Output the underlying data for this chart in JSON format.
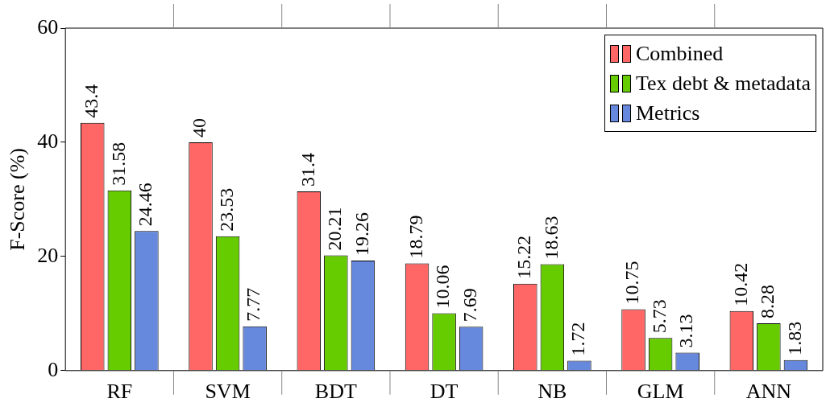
{
  "chart_data": {
    "type": "bar",
    "ylabel": "F-Score (%)",
    "categories": [
      "RF",
      "SVM",
      "BDT",
      "DT",
      "NB",
      "GLM",
      "ANN"
    ],
    "series": [
      {
        "name": "Combined",
        "color": "#ff6666",
        "values": [
          43.4,
          40,
          31.4,
          18.79,
          15.22,
          10.75,
          10.42
        ]
      },
      {
        "name": "Tex debt & metadata",
        "color": "#66cc00",
        "values": [
          31.58,
          23.53,
          20.21,
          10.06,
          18.63,
          5.73,
          8.28
        ]
      },
      {
        "name": "Metrics",
        "color": "#6688dd",
        "values": [
          24.46,
          7.77,
          19.26,
          7.69,
          1.72,
          3.13,
          1.83
        ]
      }
    ],
    "ylim": [
      0,
      60
    ],
    "yticks": [
      0,
      20,
      40,
      60
    ],
    "grid": false,
    "legend": "top right",
    "data_labels": true
  }
}
